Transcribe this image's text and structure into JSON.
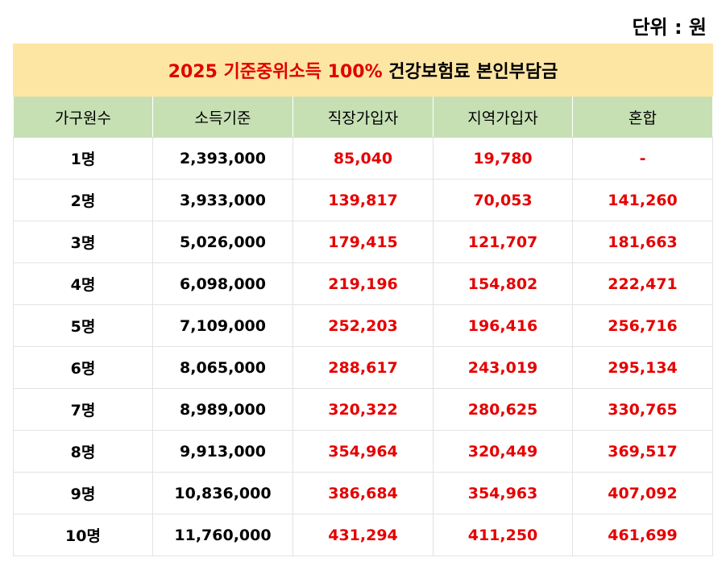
{
  "unit_label": "단위 : 원",
  "title": {
    "red_part": "2025 기준중위소득 100%",
    "black_part": "건강보험료 본인부담금"
  },
  "headers": [
    "가구원수",
    "소득기준",
    "직장가입자",
    "지역가입자",
    "혼합"
  ],
  "rows": [
    [
      "1명",
      "2,393,000",
      "85,040",
      "19,780",
      "-"
    ],
    [
      "2명",
      "3,933,000",
      "139,817",
      "70,053",
      "141,260"
    ],
    [
      "3명",
      "5,026,000",
      "179,415",
      "121,707",
      "181,663"
    ],
    [
      "4명",
      "6,098,000",
      "219,196",
      "154,802",
      "222,471"
    ],
    [
      "5명",
      "7,109,000",
      "252,203",
      "196,416",
      "256,716"
    ],
    [
      "6명",
      "8,065,000",
      "288,617",
      "243,019",
      "295,134"
    ],
    [
      "7명",
      "8,989,000",
      "320,322",
      "280,625",
      "330,765"
    ],
    [
      "8명",
      "9,913,000",
      "354,964",
      "320,449",
      "369,517"
    ],
    [
      "9명",
      "10,836,000",
      "386,684",
      "354,963",
      "407,092"
    ],
    [
      "10명",
      "11,760,000",
      "431,294",
      "411,250",
      "461,699"
    ]
  ],
  "colors": {
    "title_background": "#fde6a4",
    "header_background": "#c6e0b4",
    "highlight_text": "#e60000"
  }
}
